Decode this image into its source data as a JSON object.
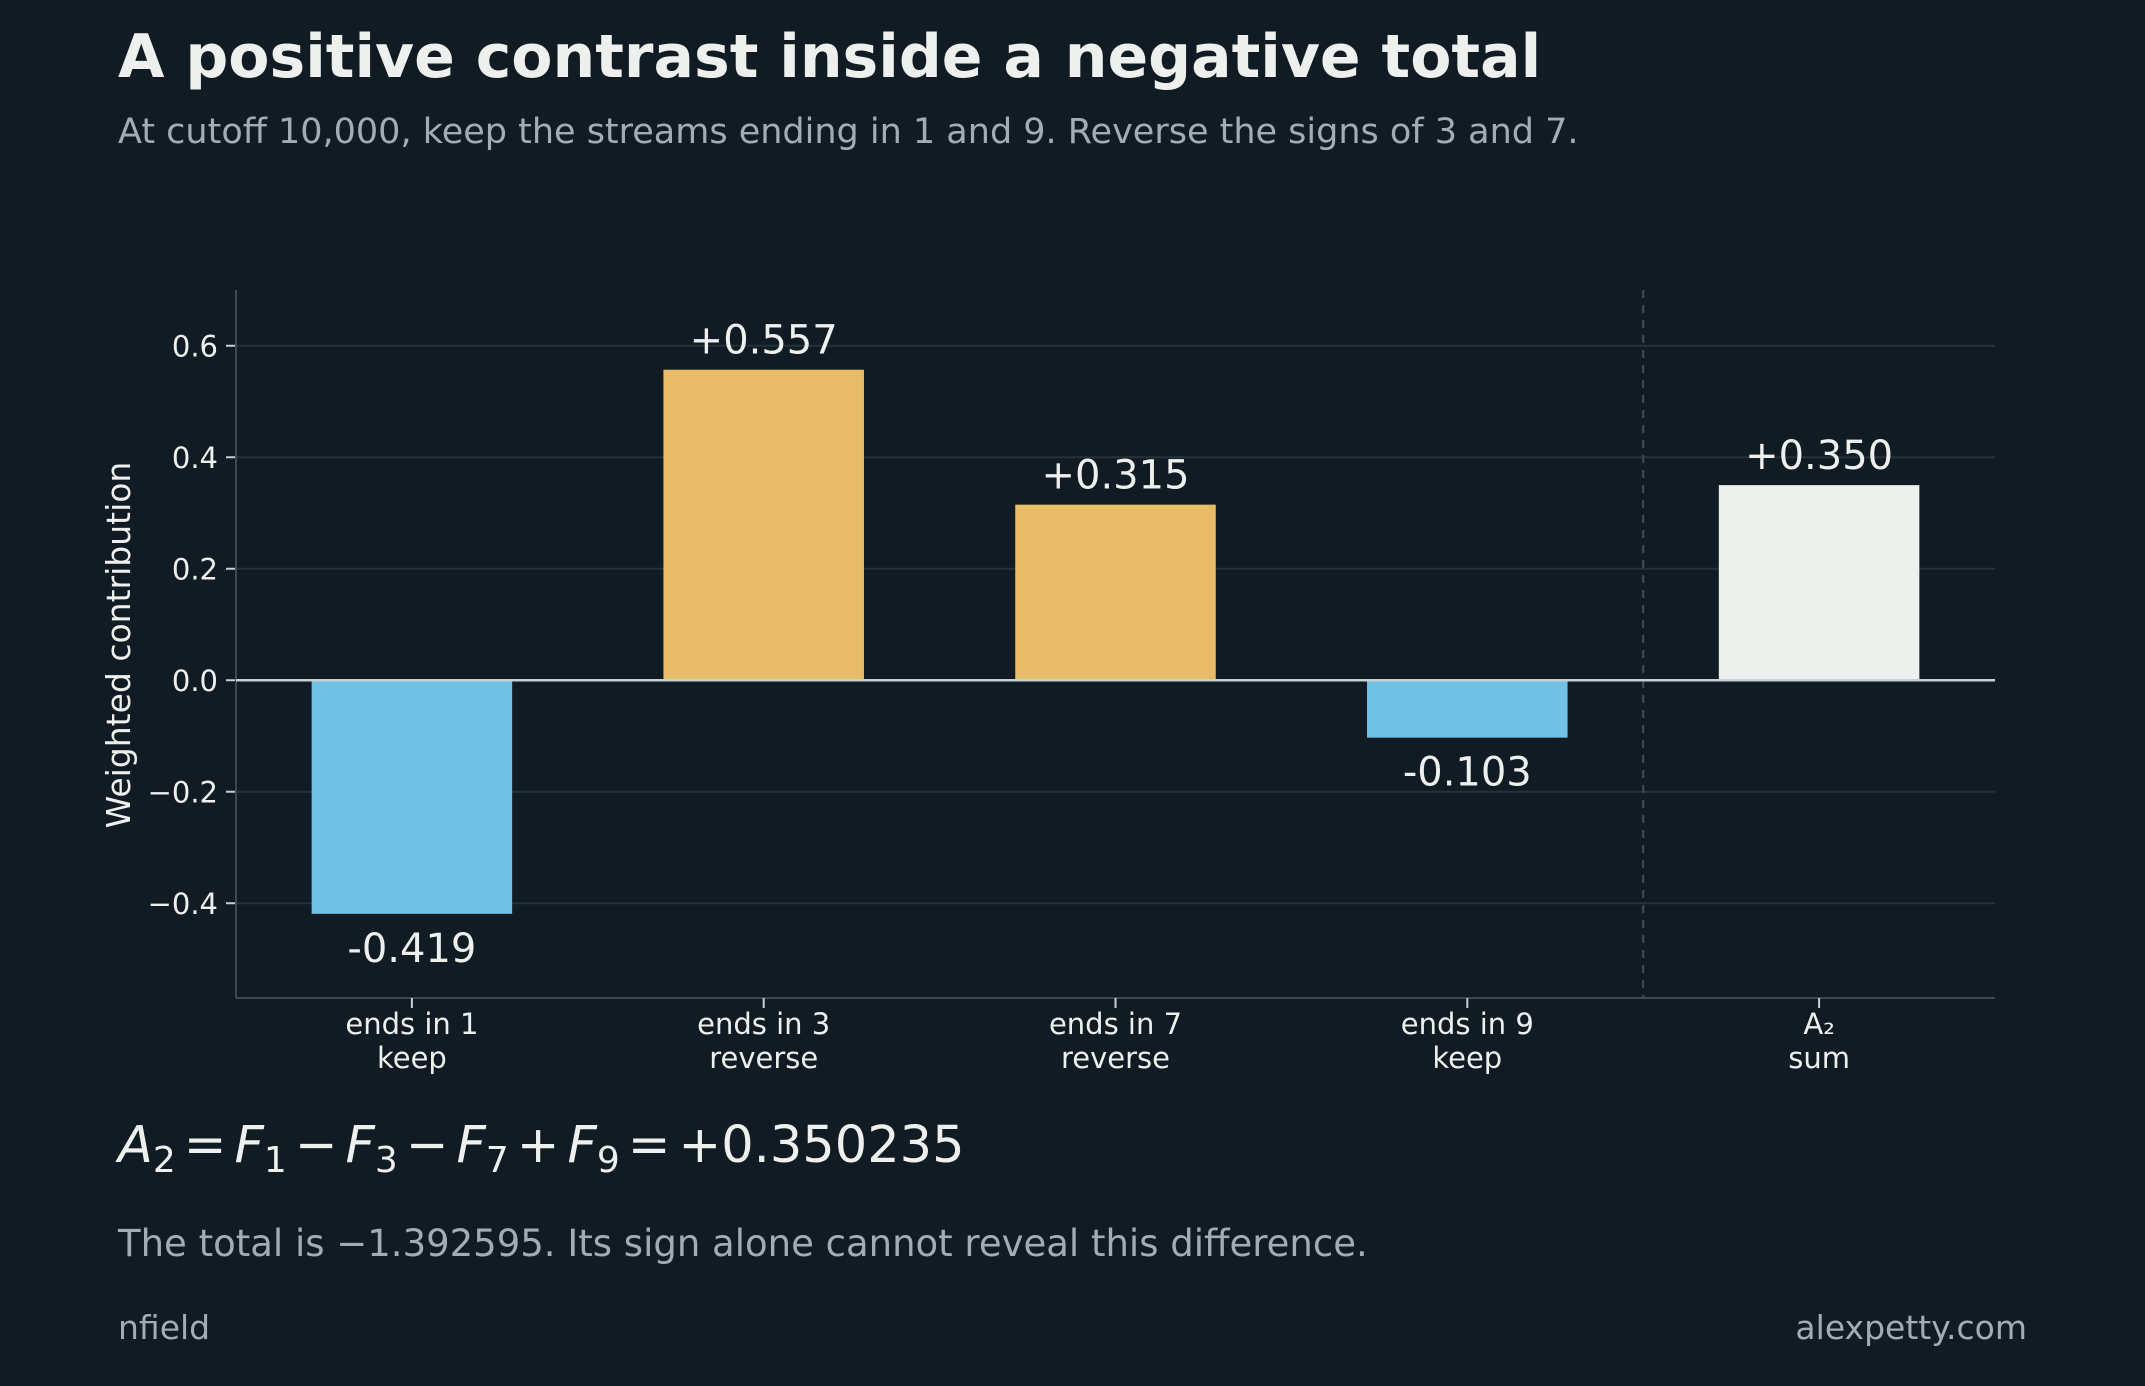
{
  "header": {
    "title": "A positive contrast inside a negative total",
    "subtitle": "At cutoff 10,000, keep the streams ending in 1 and 9. Reverse the signs of 3 and 7."
  },
  "chart_data": {
    "type": "bar",
    "ylabel": "Weighted contribution",
    "ylim": [
      -0.57,
      0.7
    ],
    "yticks": [
      0.6,
      0.4,
      0.2,
      0.0,
      -0.2,
      -0.4
    ],
    "ytick_labels": [
      "0.6",
      "0.4",
      "0.2",
      "0.0",
      "−0.2",
      "−0.4"
    ],
    "grid": true,
    "categories": [
      {
        "line1": "ends in 1",
        "line2": "keep"
      },
      {
        "line1": "ends in 3",
        "line2": "reverse"
      },
      {
        "line1": "ends in 7",
        "line2": "reverse"
      },
      {
        "line1": "ends in 9",
        "line2": "keep"
      },
      {
        "line1": "A₂",
        "line2": "sum"
      }
    ],
    "values": [
      -0.419,
      0.557,
      0.315,
      -0.103,
      0.35
    ],
    "data_labels": [
      "-0.419",
      "+0.557",
      "+0.315",
      "-0.103",
      "+0.350"
    ],
    "colors": [
      "#70c1e3",
      "#e8bb67",
      "#e8bb67",
      "#70c1e3",
      "#eef0ed"
    ]
  },
  "formula": {
    "lhs": "A",
    "lhs_sub": "2",
    "t1": "F",
    "t1_sub": "1",
    "t2": "F",
    "t2_sub": "3",
    "t3": "F",
    "t3_sub": "7",
    "t4": "F",
    "t4_sub": "9",
    "result": "+0.350235"
  },
  "note": "The total is −1.392595. Its sign alone cannot reveal this difference.",
  "footer": {
    "left": "nfield",
    "right": "alexpetty.com"
  }
}
